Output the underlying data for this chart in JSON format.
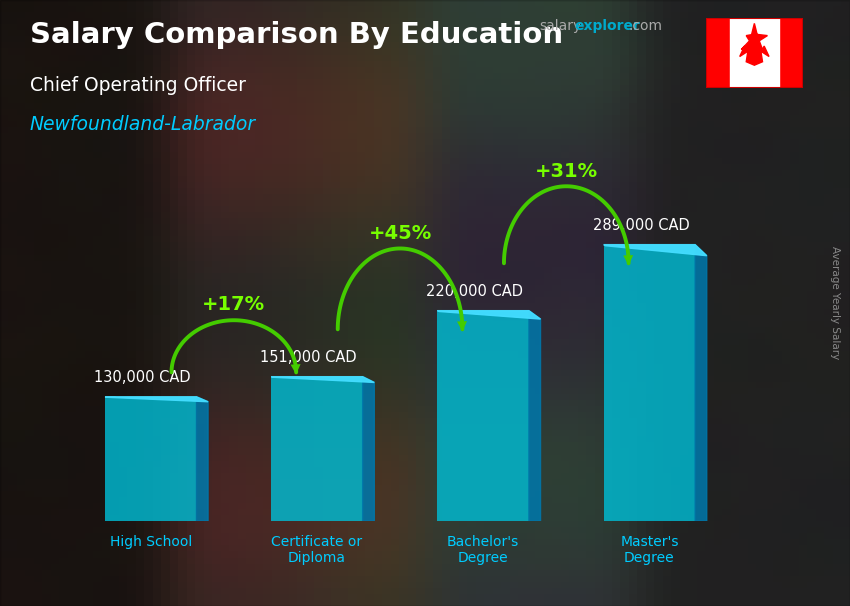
{
  "title_main": "Salary Comparison By Education",
  "subtitle1": "Chief Operating Officer",
  "subtitle2": "Newfoundland-Labrador",
  "watermark_salary": "salary",
  "watermark_explorer": "explorer",
  "watermark_com": ".com",
  "side_label": "Average Yearly Salary",
  "categories": [
    "High School",
    "Certificate or\nDiploma",
    "Bachelor's\nDegree",
    "Master's\nDegree"
  ],
  "values": [
    130000,
    151000,
    220000,
    289000
  ],
  "value_labels": [
    "130,000 CAD",
    "151,000 CAD",
    "220,000 CAD",
    "289,000 CAD"
  ],
  "pct_labels": [
    "+17%",
    "+45%",
    "+31%"
  ],
  "bar_color": "#00bcd4",
  "bar_alpha": 0.82,
  "bar_side_color": "#0077aa",
  "bar_top_color": "#44ddff",
  "background_color": "#555555",
  "title_color": "#ffffff",
  "subtitle1_color": "#ffffff",
  "subtitle2_color": "#00ccff",
  "value_label_color": "#ffffff",
  "pct_color": "#77ff00",
  "arrow_color": "#44cc00",
  "tick_color": "#00ccff",
  "ylim_max": 380000,
  "figsize": [
    8.5,
    6.06
  ],
  "dpi": 100
}
